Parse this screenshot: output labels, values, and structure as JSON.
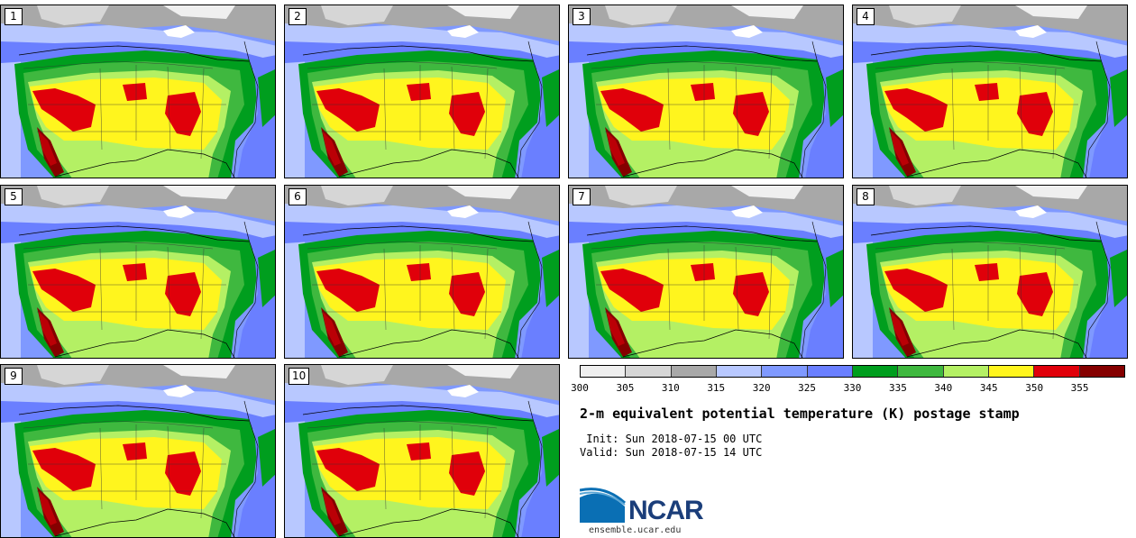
{
  "stamps": [
    "1",
    "2",
    "3",
    "4",
    "5",
    "6",
    "7",
    "8",
    "9",
    "10"
  ],
  "colorbar": {
    "colors": [
      "#efefef",
      "#d6d6d6",
      "#a8a8a8",
      "#b8c8ff",
      "#7f99ff",
      "#6a7fff",
      "#009e1e",
      "#3fb83f",
      "#b4f064",
      "#fff51e",
      "#e0000a",
      "#850000"
    ],
    "ticks": [
      "300",
      "305",
      "310",
      "315",
      "320",
      "325",
      "330",
      "335",
      "340",
      "345",
      "350",
      "355"
    ]
  },
  "title": "2-m equivalent potential temperature (K) postage stamp",
  "init": " Init: Sun 2018-07-15 00 UTC",
  "valid": "Valid: Sun 2018-07-15 14 UTC",
  "logo": {
    "text": "NCAR",
    "url": "ensemble.ucar.edu"
  }
}
